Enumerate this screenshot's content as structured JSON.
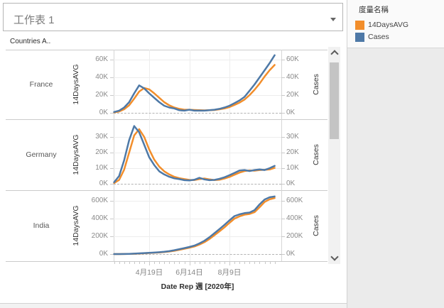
{
  "window": {
    "title": "工作表 1"
  },
  "columns_header": "Countries A..",
  "legend": {
    "title": "度量名稱",
    "items": [
      {
        "label": "14DaysAVG",
        "color": "#f28e2b"
      },
      {
        "label": "Cases",
        "color": "#4e79a7"
      }
    ]
  },
  "colors": {
    "avg_orange": "#f28e2b",
    "cases_blue": "#4e79a7"
  },
  "chart_data": {
    "type": "line",
    "x_axis_title": "Date Rep 週 [2020年]",
    "x_tick_labels": [
      "4月19日",
      "6月14日",
      "8月9日"
    ],
    "x_tick_week_indices": [
      7,
      15,
      23
    ],
    "x_unit": "weeks (2020, 33 weekly points from early March to mid October)",
    "value_unit": "K",
    "panes": [
      {
        "country": "France",
        "left_axis_title": "14DaysAVG",
        "right_axis_title": "Cases",
        "y_tick_labels": [
          "0K",
          "20K",
          "40K",
          "60K"
        ],
        "y_tick_values": [
          0,
          20,
          40,
          60
        ],
        "series": [
          {
            "name": "14DaysAVG",
            "color": "#f28e2b",
            "values": [
              0.5,
              1.5,
              4,
              8.5,
              16,
              24,
              28,
              26.5,
              22,
              17,
              12,
              8.5,
              6,
              4.5,
              3.5,
              3.5,
              3.2,
              3,
              2.8,
              3,
              3.2,
              4,
              5,
              6.5,
              9,
              11.5,
              15,
              20,
              26,
              33,
              41,
              48,
              54
            ]
          },
          {
            "name": "Cases",
            "color": "#4e79a7",
            "values": [
              1,
              2.5,
              6,
              12,
              22,
              31,
              27.5,
              22,
              17,
              12,
              8,
              6,
              5,
              3,
              2.5,
              3.5,
              2.5,
              2.5,
              2.5,
              3,
              3.5,
              4.5,
              6,
              8,
              11,
              14,
              18,
              25,
              32,
              40,
              48,
              56,
              65
            ]
          }
        ]
      },
      {
        "country": "Germany",
        "left_axis_title": "14DaysAVG",
        "right_axis_title": "Cases",
        "y_tick_labels": [
          "0K",
          "10K",
          "20K",
          "30K"
        ],
        "y_tick_values": [
          0,
          10,
          20,
          30
        ],
        "series": [
          {
            "name": "14DaysAVG",
            "color": "#f28e2b",
            "values": [
              0.5,
              2.5,
              9,
              20,
              31,
              35,
              30,
              22,
              15.5,
              11,
              8,
              6,
              4.5,
              3.6,
              3,
              2.5,
              2.4,
              3,
              3.4,
              2.8,
              2.4,
              2.6,
              3.4,
              4.4,
              5.8,
              7.2,
              8.2,
              8.6,
              8.4,
              8.8,
              9,
              9.2,
              10.2
            ]
          },
          {
            "name": "Cases",
            "color": "#4e79a7",
            "values": [
              1,
              5,
              15,
              28,
              37,
              33,
              25,
              17,
              12,
              8,
              6,
              4.5,
              3.5,
              3,
              2.3,
              2.2,
              2.6,
              3.8,
              2.8,
              2.3,
              2.5,
              3.2,
              4.2,
              5.5,
              7,
              8.5,
              8.8,
              8.2,
              8.8,
              9.2,
              8.8,
              10,
              11.5
            ]
          }
        ]
      },
      {
        "country": "India",
        "left_axis_title": "14DaysAVG",
        "right_axis_title": "Cases",
        "y_tick_labels": [
          "0K",
          "200K",
          "400K",
          "600K"
        ],
        "y_tick_values": [
          0,
          200,
          400,
          600
        ],
        "series": [
          {
            "name": "14DaysAVG",
            "color": "#f28e2b",
            "values": [
              0.05,
              0.2,
              0.6,
              1.5,
              3.5,
              6,
              9,
              12,
              15,
              18.5,
              23,
              29,
              37,
              48,
              60,
              72,
              86,
              107,
              134,
              170,
              212,
              256,
              302,
              352,
              400,
              426,
              444,
              452,
              472,
              528,
              588,
              618,
              632
            ]
          },
          {
            "name": "Cases",
            "color": "#4e79a7",
            "values": [
              0.1,
              0.4,
              1,
              2.5,
              5,
              8,
              11,
              14,
              17,
              21,
              26,
              33,
              43,
              55,
              67,
              80,
              95,
              120,
              150,
              190,
              235,
              282,
              330,
              380,
              428,
              448,
              462,
              468,
              495,
              560,
              615,
              640,
              650
            ]
          }
        ]
      }
    ]
  }
}
